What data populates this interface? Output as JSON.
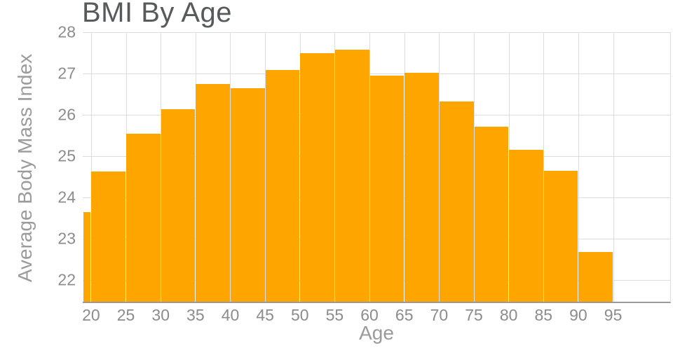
{
  "chart_data": {
    "type": "bar",
    "title": "BMI By Age",
    "xlabel": "Age",
    "ylabel": "Average Body Mass Index",
    "x_ticks": [
      20,
      25,
      30,
      35,
      40,
      45,
      50,
      55,
      60,
      65,
      70,
      75,
      80,
      85,
      90,
      95
    ],
    "y_ticks": [
      22,
      23,
      24,
      25,
      26,
      27,
      28
    ],
    "xlim": [
      18.8,
      103.2
    ],
    "ylim": [
      21.48,
      28
    ],
    "grid": true,
    "bar_color": "#ffa500",
    "bins": [
      {
        "x0": 18.8,
        "x1": 20,
        "label": "<20",
        "value": 23.65
      },
      {
        "x0": 20,
        "x1": 25,
        "label": "20-25",
        "value": 24.63
      },
      {
        "x0": 25,
        "x1": 30,
        "label": "25-30",
        "value": 25.55
      },
      {
        "x0": 30,
        "x1": 35,
        "label": "30-35",
        "value": 26.13
      },
      {
        "x0": 35,
        "x1": 40,
        "label": "35-40",
        "value": 26.74
      },
      {
        "x0": 40,
        "x1": 45,
        "label": "40-45",
        "value": 26.64
      },
      {
        "x0": 45,
        "x1": 50,
        "label": "45-50",
        "value": 27.09
      },
      {
        "x0": 50,
        "x1": 55,
        "label": "50-55",
        "value": 27.5
      },
      {
        "x0": 55,
        "x1": 60,
        "label": "55-60",
        "value": 27.57
      },
      {
        "x0": 60,
        "x1": 65,
        "label": "60-65",
        "value": 26.95
      },
      {
        "x0": 65,
        "x1": 70,
        "label": "65-70",
        "value": 27.02
      },
      {
        "x0": 70,
        "x1": 75,
        "label": "70-75",
        "value": 26.33
      },
      {
        "x0": 75,
        "x1": 80,
        "label": "75-80",
        "value": 25.71
      },
      {
        "x0": 80,
        "x1": 85,
        "label": "80-85",
        "value": 25.15
      },
      {
        "x0": 85,
        "x1": 90,
        "label": "85-90",
        "value": 24.64
      },
      {
        "x0": 90,
        "x1": 95,
        "label": "90-95",
        "value": 22.68
      }
    ]
  },
  "colors": {
    "bar": "#ffa500",
    "grid": "#dddddd",
    "axis_line": "#9a9a9a",
    "tick_text": "#8c8c8c",
    "title_text": "#58595b"
  }
}
